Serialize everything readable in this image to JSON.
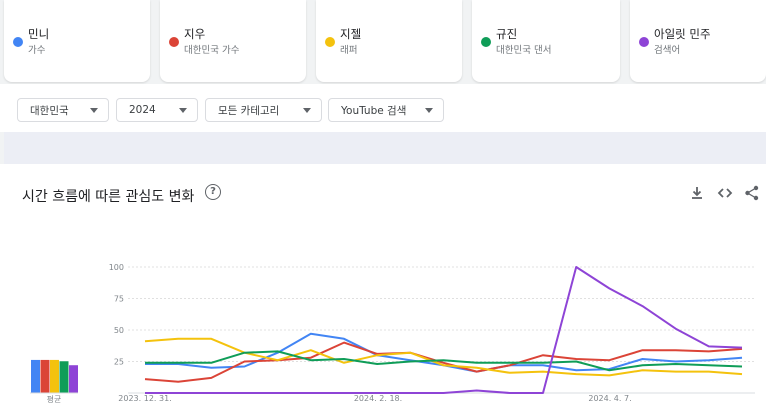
{
  "terms": [
    {
      "name": "민니",
      "sub": "가수",
      "color": "#4285f4"
    },
    {
      "name": "지우",
      "sub": "대한민국 가수",
      "color": "#db4437"
    },
    {
      "name": "지젤",
      "sub": "래퍼",
      "color": "#f4c20d"
    },
    {
      "name": "규진",
      "sub": "대한민국 댄서",
      "color": "#0f9d58"
    },
    {
      "name": "아일릿 민주",
      "sub": "검색어",
      "color": "#8e44d6"
    }
  ],
  "filters": {
    "region": "대한민국",
    "period": "2024",
    "category": "모든 카테고리",
    "source": "YouTube 검색"
  },
  "panel": {
    "title": "시간 흐름에 따른 관심도 변화",
    "help_icon": "help-circle-icon",
    "download_icon": "download-icon",
    "embed_icon": "code-icon",
    "share_icon": "share-icon"
  },
  "chart_data": {
    "type": "line",
    "y_ticks": [
      "100",
      "75",
      "50",
      "25"
    ],
    "ylim": [
      0,
      100
    ],
    "x_tick_labels": [
      "2023. 12. 31.",
      "2024. 2. 18.",
      "2024. 4. 7."
    ],
    "average_label": "평균",
    "averages": [
      25,
      25,
      25,
      24,
      21
    ],
    "grid": true,
    "series": [
      {
        "name": "민니",
        "color": "#4285f4",
        "values": [
          23,
          23,
          20,
          21,
          32,
          47,
          43,
          30,
          26,
          22,
          17,
          22,
          22,
          18,
          19,
          27,
          25,
          26,
          28
        ]
      },
      {
        "name": "지우",
        "color": "#db4437",
        "values": [
          11,
          9,
          12,
          25,
          26,
          28,
          40,
          31,
          32,
          24,
          17,
          22,
          30,
          27,
          26,
          34,
          34,
          33,
          35
        ]
      },
      {
        "name": "지젤",
        "color": "#f4c20d",
        "values": [
          41,
          43,
          43,
          32,
          26,
          34,
          24,
          30,
          32,
          22,
          20,
          16,
          17,
          15,
          14,
          18,
          17,
          17,
          15
        ]
      },
      {
        "name": "규진",
        "color": "#0f9d58",
        "values": [
          24,
          24,
          24,
          32,
          33,
          26,
          27,
          23,
          25,
          26,
          24,
          24,
          24,
          25,
          18,
          22,
          23,
          22,
          21
        ]
      },
      {
        "name": "아일릿 민주",
        "color": "#8e44d6",
        "values": [
          0,
          0,
          0,
          0,
          0,
          0,
          0,
          0,
          0,
          0,
          2,
          0,
          0,
          100,
          83,
          69,
          51,
          37,
          36
        ]
      }
    ]
  }
}
